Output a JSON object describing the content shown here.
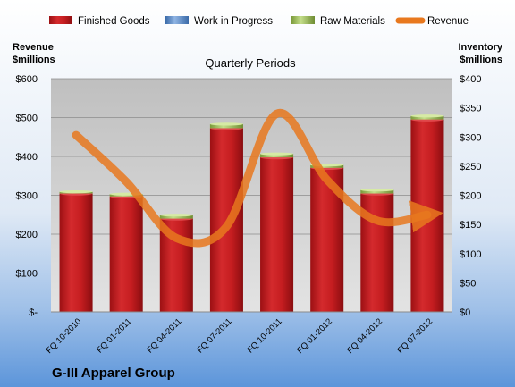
{
  "chart_data": {
    "type": "bar",
    "title": "Quarterly Periods",
    "company": "G-III Apparel Group",
    "left_axis_label": [
      "Revenue",
      "$millions"
    ],
    "right_axis_label": [
      "Inventory",
      "$millions"
    ],
    "categories": [
      "FQ 10-2010",
      "FQ 01-2011",
      "FQ 04-2011",
      "FQ 07-2011",
      "FQ 10-2011",
      "FQ 01-2012",
      "FQ 04-2012",
      "FQ 07-2012"
    ],
    "series": [
      {
        "name": "Finished Goods",
        "axis": "right",
        "kind": "bar",
        "color": "#c0191c",
        "values": [
          203,
          198,
          160,
          315,
          265,
          247,
          203,
          330
        ]
      },
      {
        "name": "Work in Progress",
        "axis": "right",
        "kind": "bar",
        "color": "#4f81bd",
        "values": [
          0,
          0,
          0,
          0,
          0,
          0,
          0,
          0
        ]
      },
      {
        "name": "Raw Materials",
        "axis": "right",
        "kind": "bar",
        "color": "#9bbb59",
        "values": [
          3,
          4,
          6,
          7,
          6,
          5,
          6,
          6
        ]
      },
      {
        "name": "Revenue",
        "axis": "left",
        "kind": "line",
        "color": "#e8781e",
        "values": [
          455,
          335,
          190,
          220,
          510,
          340,
          235,
          250
        ]
      }
    ],
    "left_axis": {
      "min": 0,
      "max": 600,
      "step": 100,
      "ticks": [
        "$-",
        "$100",
        "$200",
        "$300",
        "$400",
        "$500",
        "$600"
      ]
    },
    "right_axis": {
      "min": 0,
      "max": 400,
      "step": 50,
      "ticks": [
        "$0",
        "$50",
        "$100",
        "$150",
        "$200",
        "$250",
        "$300",
        "$350",
        "$400"
      ]
    },
    "legend_position": "top",
    "grid": true
  }
}
